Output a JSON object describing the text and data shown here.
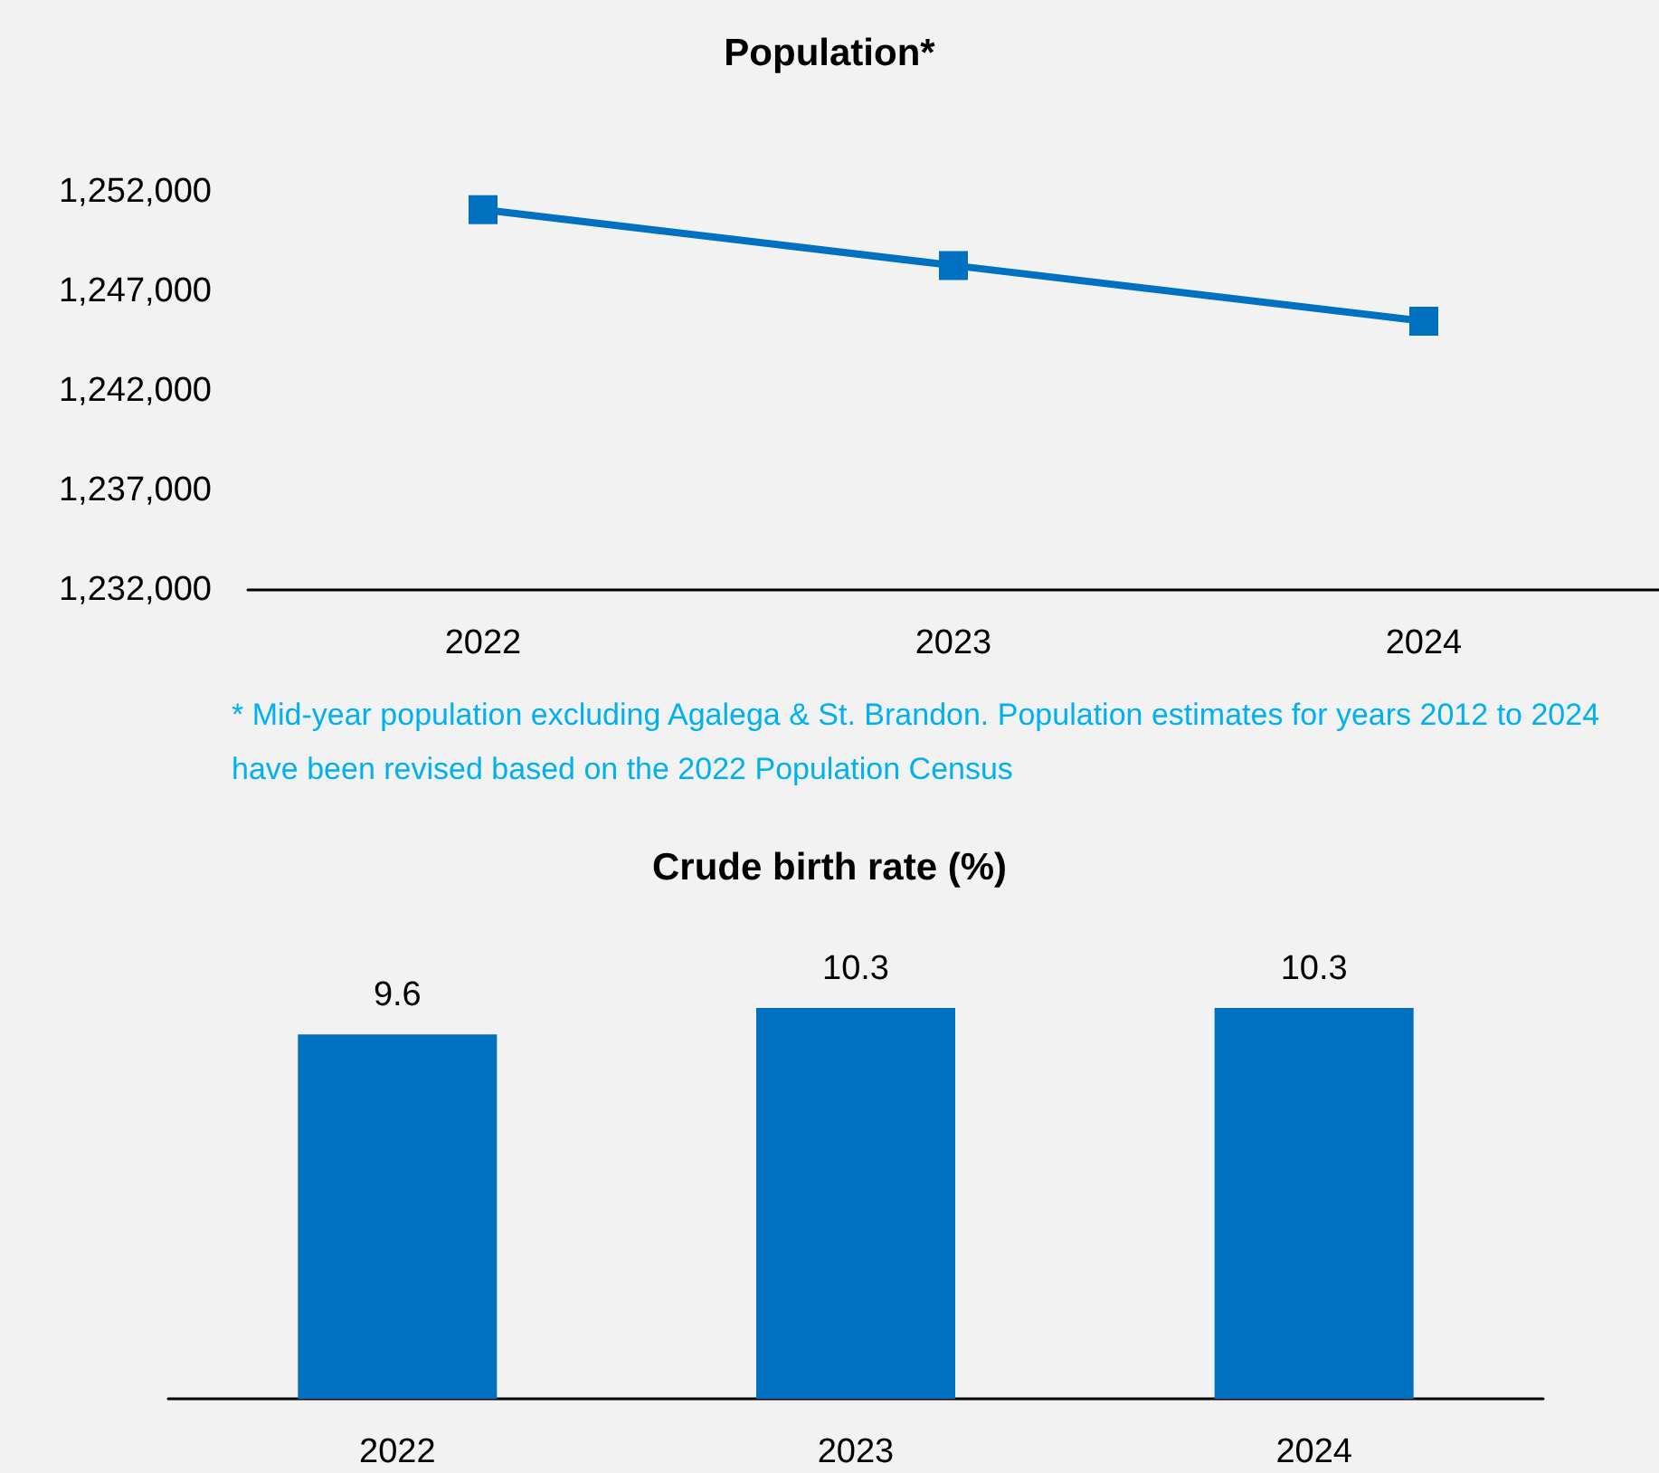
{
  "chart_data": [
    {
      "type": "line",
      "title": "Population*",
      "categories": [
        "2022",
        "2023",
        "2024"
      ],
      "series": [
        {
          "color": "#0070c0",
          "values": [
            1251100,
            1248300,
            1245500
          ]
        }
      ],
      "ylim": [
        1232000,
        1252000
      ],
      "yticks": [
        {
          "value": 1232000,
          "label": "1,232,000"
        },
        {
          "value": 1237000,
          "label": "1,237,000"
        },
        {
          "value": 1242000,
          "label": "1,242,000"
        },
        {
          "value": 1247000,
          "label": "1,247,000"
        },
        {
          "value": 1252000,
          "label": "1,252,000"
        }
      ],
      "grid": false,
      "marker": "square",
      "line_style": "solid",
      "annotations": [
        "* Mid-year population excluding Agalega & St. Brandon. Population estimates for years 2012 to 2024 have been revised based on the 2022 Population Census"
      ]
    },
    {
      "type": "bar",
      "title": "Crude birth rate (%)",
      "categories": [
        "2022",
        "2023",
        "2024"
      ],
      "series": [
        {
          "color": "#0070c0",
          "values": [
            9.6,
            10.3,
            10.3
          ]
        }
      ],
      "data_labels": true,
      "grid": false,
      "tick_labels": "x"
    }
  ]
}
